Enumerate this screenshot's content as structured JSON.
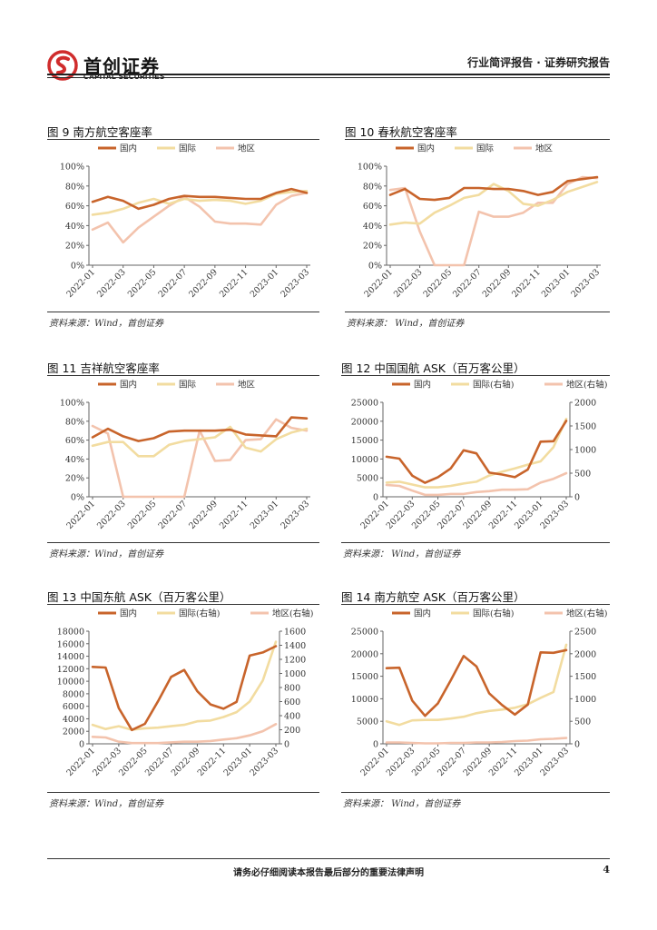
{
  "header": {
    "logo_cn": "首创证券",
    "logo_en": "CAPITAL SECURITIES",
    "report_type": "行业简评报告 · 证券研究报告"
  },
  "footer": {
    "disclaimer": "请务必仔细阅读本报告最后部分的重要法律声明",
    "page_number": "4"
  },
  "colors": {
    "domestic": "#c8642b",
    "international": "#f2dca0",
    "regional": "#f3c3ad",
    "brand": "#d02c2c"
  },
  "chart_data": [
    {
      "id": "fig9",
      "type": "line",
      "title": "图 9  南方航空客座率",
      "source": "资料来源：Wind，首创证券",
      "x": [
        "2022-01",
        "2022-02",
        "2022-03",
        "2022-04",
        "2022-05",
        "2022-06",
        "2022-07",
        "2022-08",
        "2022-09",
        "2022-10",
        "2022-11",
        "2022-12",
        "2023-01",
        "2023-02",
        "2023-03"
      ],
      "xticks": [
        "2022-01",
        "2022-03",
        "2022-05",
        "2022-07",
        "2022-09",
        "2022-11",
        "2023-01",
        "2023-03"
      ],
      "ylim": [
        0,
        100
      ],
      "yticks": [
        0,
        20,
        40,
        60,
        80,
        100
      ],
      "ytick_labels": [
        "0%",
        "20%",
        "40%",
        "60%",
        "80%",
        "100%"
      ],
      "y2lim": null,
      "y2ticks": [],
      "legend": "top",
      "series": [
        {
          "name": "国内",
          "axis": "left",
          "values": [
            64,
            69,
            65,
            57,
            61,
            67,
            70,
            69,
            69,
            68,
            67,
            67,
            73,
            77,
            73
          ]
        },
        {
          "name": "国际",
          "axis": "left",
          "values": [
            51,
            53,
            57,
            63,
            67,
            62,
            67,
            65,
            66,
            65,
            62,
            65,
            72,
            74,
            75
          ]
        },
        {
          "name": "地区",
          "axis": "left",
          "values": [
            36,
            43,
            23,
            38,
            49,
            60,
            69,
            59,
            44,
            42,
            42,
            41,
            61,
            70,
            73
          ]
        }
      ]
    },
    {
      "id": "fig10",
      "type": "line",
      "title": "图  10  春秋航空客座率",
      "source": "资料来源：  Wind，首创证券",
      "x": [
        "2022-01",
        "2022-02",
        "2022-03",
        "2022-04",
        "2022-05",
        "2022-06",
        "2022-07",
        "2022-08",
        "2022-09",
        "2022-10",
        "2022-11",
        "2022-12",
        "2023-01",
        "2023-02",
        "2023-03"
      ],
      "xticks": [
        "2022-01",
        "2022-03",
        "2022-05",
        "2022-07",
        "2022-09",
        "2022-11",
        "2023-01",
        "2023-03"
      ],
      "ylim": [
        0,
        100
      ],
      "yticks": [
        0,
        20,
        40,
        60,
        80,
        100
      ],
      "ytick_labels": [
        "0%",
        "20%",
        "40%",
        "60%",
        "80%",
        "100%"
      ],
      "y2lim": null,
      "y2ticks": [],
      "legend": "top",
      "series": [
        {
          "name": "国内",
          "axis": "left",
          "values": [
            71,
            77,
            67,
            66,
            68,
            78,
            78,
            77,
            77,
            75,
            71,
            74,
            85,
            87,
            89
          ]
        },
        {
          "name": "国际",
          "axis": "left",
          "values": [
            41,
            43,
            42,
            53,
            60,
            68,
            71,
            82,
            75,
            62,
            60,
            66,
            74,
            79,
            84
          ]
        },
        {
          "name": "地区",
          "axis": "left",
          "values": [
            76,
            78,
            34,
            0,
            0,
            0,
            54,
            49,
            49,
            53,
            63,
            63,
            82,
            89,
            88
          ]
        }
      ]
    },
    {
      "id": "fig11",
      "type": "line",
      "title": "图  11  吉祥航空客座率",
      "source": "资料来源：Wind，首创证券",
      "x": [
        "2022-01",
        "2022-02",
        "2022-03",
        "2022-04",
        "2022-05",
        "2022-06",
        "2022-07",
        "2022-08",
        "2022-09",
        "2022-10",
        "2022-11",
        "2022-12",
        "2023-01",
        "2023-02",
        "2023-03"
      ],
      "xticks": [
        "2022-01",
        "2022-03",
        "2022-05",
        "2022-07",
        "2022-09",
        "2022-11",
        "2023-01",
        "2023-03"
      ],
      "ylim": [
        0,
        100
      ],
      "yticks": [
        0,
        20,
        40,
        60,
        80,
        100
      ],
      "ytick_labels": [
        "0%",
        "20%",
        "40%",
        "60%",
        "80%",
        "100%"
      ],
      "y2lim": null,
      "y2ticks": [],
      "legend": "top",
      "series": [
        {
          "name": "国内",
          "axis": "left",
          "values": [
            63,
            72,
            64,
            59,
            62,
            69,
            70,
            70,
            70,
            71,
            66,
            65,
            64,
            84,
            83
          ]
        },
        {
          "name": "国际",
          "axis": "left",
          "values": [
            54,
            58,
            58,
            43,
            43,
            55,
            59,
            61,
            63,
            74,
            52,
            48,
            61,
            68,
            72
          ]
        },
        {
          "name": "地区",
          "axis": "left",
          "values": [
            75,
            67,
            0,
            0,
            0,
            0,
            0,
            70,
            38,
            39,
            60,
            61,
            82,
            73,
            70
          ]
        }
      ]
    },
    {
      "id": "fig12",
      "type": "line",
      "title": "图  12  中国国航 ASK（百万客公里）",
      "source": "资料来源：  Wind，首创证券",
      "x": [
        "2022-01",
        "2022-02",
        "2022-03",
        "2022-04",
        "2022-05",
        "2022-06",
        "2022-07",
        "2022-08",
        "2022-09",
        "2022-10",
        "2022-11",
        "2022-12",
        "2023-01",
        "2023-02",
        "2023-03"
      ],
      "xticks": [
        "2022-01",
        "2022-03",
        "2022-05",
        "2022-07",
        "2022-09",
        "2022-11",
        "2023-01",
        "2023-03"
      ],
      "ylim": [
        0,
        25000
      ],
      "yticks": [
        0,
        5000,
        10000,
        15000,
        20000,
        25000
      ],
      "ytick_labels": [
        "0",
        "5000",
        "10000",
        "15000",
        "20000",
        "25000"
      ],
      "y2lim": [
        0,
        2000
      ],
      "y2ticks": [
        0,
        500,
        1000,
        1500,
        2000
      ],
      "y2tick_labels": [
        "0",
        "500",
        "1000",
        "1500",
        "2000"
      ],
      "legend": "top",
      "series": [
        {
          "name": "国内",
          "axis": "left",
          "values": [
            10600,
            10100,
            5600,
            3700,
            5200,
            7500,
            12300,
            11500,
            6400,
            5900,
            5200,
            7200,
            14600,
            14700,
            20100
          ]
        },
        {
          "name": "国际(右轴)",
          "axis": "right",
          "values": [
            300,
            320,
            260,
            200,
            200,
            230,
            280,
            320,
            450,
            530,
            600,
            680,
            750,
            1050,
            1650
          ]
        },
        {
          "name": "地区(右轴)",
          "axis": "right",
          "values": [
            250,
            230,
            130,
            40,
            40,
            60,
            60,
            100,
            120,
            150,
            150,
            160,
            300,
            380,
            500
          ]
        }
      ]
    },
    {
      "id": "fig13",
      "type": "line",
      "title": "图  13  中国东航 ASK（百万客公里）",
      "source": "资料来源：Wind，首创证券",
      "x": [
        "2022-01",
        "2022-02",
        "2022-03",
        "2022-04",
        "2022-05",
        "2022-06",
        "2022-07",
        "2022-08",
        "2022-09",
        "2022-10",
        "2022-11",
        "2022-12",
        "2023-01",
        "2023-02",
        "2023-03"
      ],
      "xticks": [
        "2022-01",
        "2022-03",
        "2022-05",
        "2022-07",
        "2022-09",
        "2022-11",
        "2023-01",
        "2023-03"
      ],
      "ylim": [
        0,
        18000
      ],
      "yticks": [
        0,
        2000,
        4000,
        6000,
        8000,
        10000,
        12000,
        14000,
        16000,
        18000
      ],
      "ytick_labels": [
        "0",
        "2000",
        "4000",
        "6000",
        "8000",
        "10000",
        "12000",
        "14000",
        "16000",
        "18000"
      ],
      "y2lim": [
        0,
        1600
      ],
      "y2ticks": [
        0,
        200,
        400,
        600,
        800,
        1000,
        1200,
        1400,
        1600
      ],
      "y2tick_labels": [
        "0",
        "200",
        "400",
        "600",
        "800",
        "1000",
        "1200",
        "1400",
        "1600"
      ],
      "legend": "top",
      "series": [
        {
          "name": "国内",
          "axis": "left",
          "values": [
            12300,
            12200,
            5700,
            2200,
            3200,
            6800,
            10700,
            11800,
            8400,
            6300,
            5600,
            6700,
            14100,
            14600,
            15600
          ]
        },
        {
          "name": "国际(右轴)",
          "axis": "right",
          "values": [
            270,
            210,
            250,
            200,
            220,
            230,
            250,
            270,
            320,
            330,
            380,
            450,
            600,
            900,
            1450
          ]
        },
        {
          "name": "地区(右轴)",
          "axis": "right",
          "values": [
            100,
            90,
            30,
            10,
            10,
            10,
            20,
            30,
            30,
            40,
            60,
            80,
            120,
            180,
            280
          ]
        }
      ]
    },
    {
      "id": "fig14",
      "type": "line",
      "title": "图  14  南方航空 ASK（百万客公里）",
      "source": "资料来源：  Wind，首创证券",
      "x": [
        "2022-01",
        "2022-02",
        "2022-03",
        "2022-04",
        "2022-05",
        "2022-06",
        "2022-07",
        "2022-08",
        "2022-09",
        "2022-10",
        "2022-11",
        "2022-12",
        "2023-01",
        "2023-02",
        "2023-03"
      ],
      "xticks": [
        "2022-01",
        "2022-03",
        "2022-05",
        "2022-07",
        "2022-09",
        "2022-11",
        "2023-01",
        "2023-03"
      ],
      "ylim": [
        0,
        25000
      ],
      "yticks": [
        0,
        5000,
        10000,
        15000,
        20000,
        25000
      ],
      "ytick_labels": [
        "0",
        "5000",
        "10000",
        "15000",
        "20000",
        "25000"
      ],
      "y2lim": [
        0,
        2500
      ],
      "y2ticks": [
        0,
        500,
        1000,
        1500,
        2000,
        2500
      ],
      "y2tick_labels": [
        "0",
        "500",
        "1000",
        "1500",
        "2000",
        "2500"
      ],
      "legend": "top",
      "series": [
        {
          "name": "国内",
          "axis": "left",
          "values": [
            16800,
            16900,
            9600,
            6200,
            9000,
            14100,
            19500,
            17200,
            11200,
            8600,
            6500,
            8700,
            20300,
            20200,
            20800
          ]
        },
        {
          "name": "国际(右轴)",
          "axis": "right",
          "values": [
            500,
            420,
            520,
            530,
            530,
            560,
            600,
            680,
            730,
            760,
            800,
            880,
            1020,
            1150,
            2200
          ]
        },
        {
          "name": "地区(右轴)",
          "axis": "right",
          "values": [
            30,
            30,
            20,
            10,
            10,
            20,
            20,
            30,
            30,
            40,
            60,
            70,
            100,
            110,
            130
          ]
        }
      ]
    }
  ]
}
